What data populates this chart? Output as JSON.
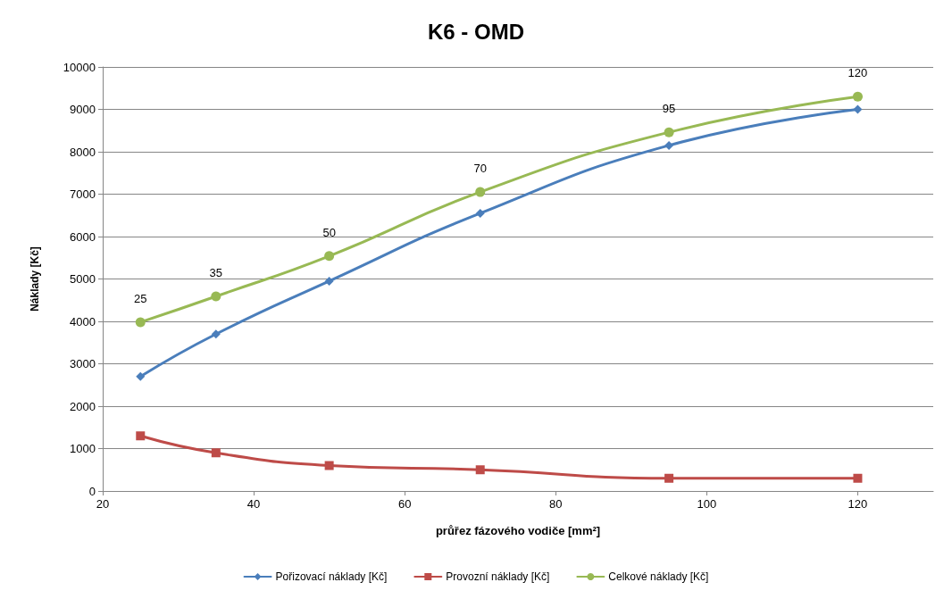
{
  "chart_data": {
    "type": "line",
    "title": "K6 - OMD",
    "xlabel": "průřez fázového vodiče [mm²]",
    "ylabel": "Náklady [Kč]",
    "x": [
      25,
      35,
      50,
      70,
      95,
      120
    ],
    "series": [
      {
        "name": "Pořizovací náklady [Kč]",
        "color": "#4a7ebb",
        "marker": "diamond",
        "values": [
          2700,
          3700,
          4950,
          6550,
          8150,
          9000
        ]
      },
      {
        "name": "Provozní náklady [Kč]",
        "color": "#be4b48",
        "marker": "square",
        "values": [
          1300,
          900,
          600,
          500,
          300,
          300
        ]
      },
      {
        "name": "Celkové náklady [Kč]",
        "color": "#98b954",
        "marker": "circle",
        "values": [
          3980,
          4590,
          5540,
          7050,
          8460,
          9300
        ]
      }
    ],
    "annotations": [
      {
        "text": "25",
        "x": 25,
        "y": 3980
      },
      {
        "text": "35",
        "x": 35,
        "y": 4590
      },
      {
        "text": "50",
        "x": 50,
        "y": 5540
      },
      {
        "text": "70",
        "x": 70,
        "y": 7050
      },
      {
        "text": "95",
        "x": 95,
        "y": 8460
      },
      {
        "text": "120",
        "x": 120,
        "y": 9300
      }
    ],
    "xlim": [
      20,
      130
    ],
    "xticks": [
      20,
      40,
      60,
      80,
      100,
      120
    ],
    "ylim": [
      0,
      10000
    ],
    "yticks": [
      0,
      1000,
      2000,
      3000,
      4000,
      5000,
      6000,
      7000,
      8000,
      9000,
      10000
    ],
    "grid": "y",
    "legend": "bottom",
    "line_style": "solid"
  }
}
